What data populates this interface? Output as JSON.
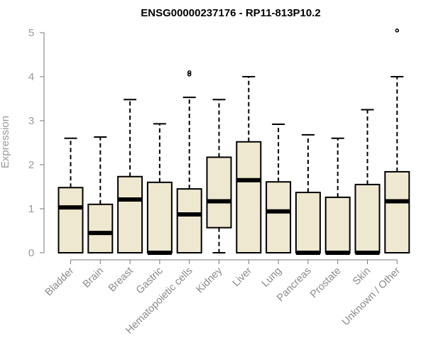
{
  "chart_data": {
    "type": "boxplot",
    "title": "ENSG00000237176 - RP11-813P10.2",
    "xlabel": "",
    "ylabel": "Expression",
    "ylim": [
      0,
      5
    ],
    "yticks": [
      0,
      1,
      2,
      3,
      4,
      5
    ],
    "grid": false,
    "legend": "none",
    "box_fill": "#efe8d0",
    "line_color": "#000000",
    "categories": [
      "Bladder",
      "Brain",
      "Breast",
      "Gastric",
      "Hematopoietic cells",
      "Kidney",
      "Liver",
      "Lung",
      "Pancreas",
      "Prostate",
      "Skin",
      "Unknown / Other"
    ],
    "boxes": [
      {
        "min": 0,
        "q1": 0,
        "median": 1.03,
        "q3": 1.48,
        "max": 2.6,
        "outliers": []
      },
      {
        "min": 0,
        "q1": 0,
        "median": 0.45,
        "q3": 1.1,
        "max": 2.63,
        "outliers": []
      },
      {
        "min": 0,
        "q1": 0,
        "median": 1.21,
        "q3": 1.73,
        "max": 3.48,
        "outliers": []
      },
      {
        "min": 0,
        "q1": 0,
        "median": 0.0,
        "q3": 1.6,
        "max": 2.93,
        "outliers": []
      },
      {
        "min": 0,
        "q1": 0,
        "median": 0.87,
        "q3": 1.45,
        "max": 3.53,
        "outliers": [
          4.05,
          4.1
        ]
      },
      {
        "min": 0,
        "q1": 0.57,
        "median": 1.17,
        "q3": 2.17,
        "max": 3.48,
        "outliers": []
      },
      {
        "min": 0,
        "q1": 0,
        "median": 1.65,
        "q3": 2.52,
        "max": 4.0,
        "outliers": []
      },
      {
        "min": 0,
        "q1": 0,
        "median": 0.94,
        "q3": 1.61,
        "max": 2.92,
        "outliers": []
      },
      {
        "min": 0,
        "q1": 0,
        "median": 0.0,
        "q3": 1.37,
        "max": 2.68,
        "outliers": []
      },
      {
        "min": 0,
        "q1": 0,
        "median": 0.0,
        "q3": 1.26,
        "max": 2.6,
        "outliers": []
      },
      {
        "min": 0,
        "q1": 0,
        "median": 0.0,
        "q3": 1.55,
        "max": 3.25,
        "outliers": []
      },
      {
        "min": 0,
        "q1": 0,
        "median": 1.17,
        "q3": 1.84,
        "max": 4.0,
        "outliers": [
          5.05
        ]
      }
    ]
  }
}
